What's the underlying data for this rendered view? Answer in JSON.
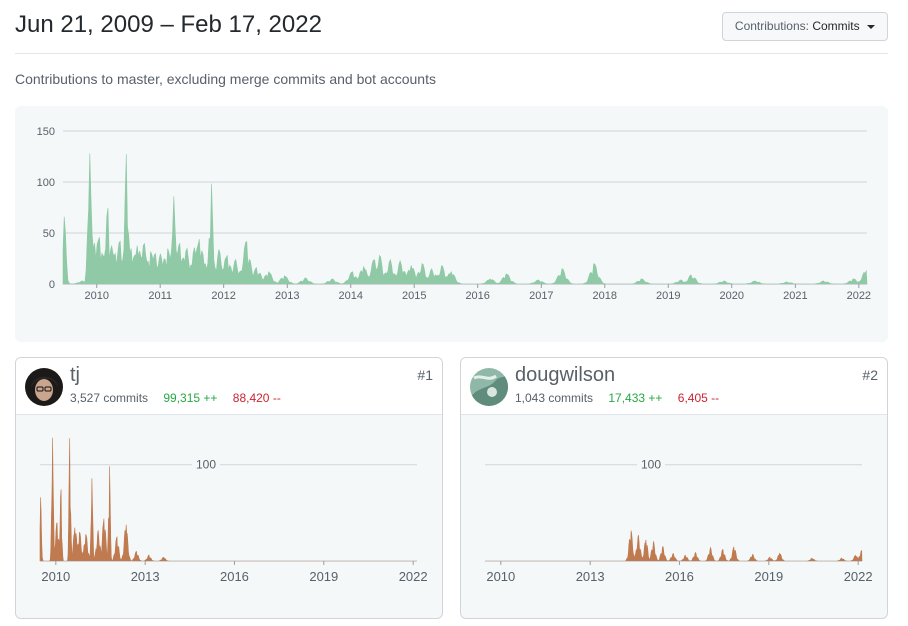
{
  "header": {
    "date_range": "Jun 21, 2009 – Feb 17, 2022",
    "dropdown_label": "Contributions:",
    "dropdown_value": "Commits"
  },
  "subtitle": "Contributions to master, excluding merge commits and bot accounts",
  "colors": {
    "main_fill": "#8fc9a5",
    "contributor_fill": "#bf7a50",
    "grid": "#d1d5da"
  },
  "chart_data": [
    {
      "type": "area",
      "title": "",
      "xlabel": "",
      "ylabel": "",
      "ylim": [
        0,
        150
      ],
      "xlim": [
        "2009-06-21",
        "2022-02-17"
      ],
      "yticks": [
        0,
        50,
        100,
        150
      ],
      "xticks": [
        "2010",
        "2011",
        "2012",
        "2013",
        "2014",
        "2015",
        "2016",
        "2017",
        "2018",
        "2019",
        "2020",
        "2021",
        "2022"
      ],
      "grid": true,
      "series": [
        {
          "peaks": [
            [
              "2009-06-28",
              66
            ],
            [
              "2009-10-10",
              3
            ],
            [
              "2009-11-22",
              128
            ],
            [
              "2009-12-20",
              40
            ],
            [
              "2010-01-15",
              46
            ],
            [
              "2010-02-10",
              28
            ],
            [
              "2010-03-05",
              76
            ],
            [
              "2010-03-25",
              38
            ],
            [
              "2010-04-20",
              30
            ],
            [
              "2010-05-15",
              42
            ],
            [
              "2010-06-22",
              130
            ],
            [
              "2010-07-20",
              35
            ],
            [
              "2010-08-25",
              38
            ],
            [
              "2010-09-30",
              40
            ],
            [
              "2010-11-05",
              32
            ],
            [
              "2010-12-05",
              30
            ],
            [
              "2011-01-05",
              30
            ],
            [
              "2011-02-10",
              35
            ],
            [
              "2011-03-20",
              86
            ],
            [
              "2011-04-25",
              40
            ],
            [
              "2011-06-05",
              35
            ],
            [
              "2011-07-20",
              36
            ],
            [
              "2011-08-15",
              44
            ],
            [
              "2011-09-15",
              20
            ],
            [
              "2011-10-20",
              103
            ],
            [
              "2011-12-05",
              34
            ],
            [
              "2012-01-20",
              28
            ],
            [
              "2012-03-10",
              24
            ],
            [
              "2012-05-10",
              42
            ],
            [
              "2012-07-10",
              16
            ],
            [
              "2012-09-15",
              12
            ],
            [
              "2012-12-15",
              8
            ],
            [
              "2013-04-15",
              6
            ],
            [
              "2013-09-15",
              5
            ],
            [
              "2014-01-10",
              12
            ],
            [
              "2014-03-15",
              17
            ],
            [
              "2014-05-15",
              24
            ],
            [
              "2014-06-15",
              28
            ],
            [
              "2014-08-15",
              24
            ],
            [
              "2014-10-15",
              23
            ],
            [
              "2014-12-15",
              18
            ],
            [
              "2015-02-15",
              20
            ],
            [
              "2015-04-15",
              15
            ],
            [
              "2015-06-10",
              18
            ],
            [
              "2015-08-01",
              12
            ],
            [
              "2016-03-15",
              5
            ],
            [
              "2016-06-15",
              10
            ],
            [
              "2016-12-15",
              4
            ],
            [
              "2017-05-01",
              15
            ],
            [
              "2017-11-01",
              20
            ],
            [
              "2018-08-01",
              5
            ],
            [
              "2019-03-15",
              4
            ],
            [
              "2019-05-15",
              9
            ],
            [
              "2019-11-15",
              3
            ],
            [
              "2020-05-15",
              3
            ],
            [
              "2020-11-15",
              2
            ],
            [
              "2021-06-15",
              3
            ],
            [
              "2021-12-01",
              5
            ],
            [
              "2022-02-10",
              13
            ]
          ]
        }
      ]
    },
    {
      "type": "area",
      "title": "tj",
      "ylim": [
        0,
        135
      ],
      "xlim": [
        "2009-06-21",
        "2022-02-17"
      ],
      "yticks": [
        100
      ],
      "xticks": [
        "2010",
        "2013",
        "2016",
        "2019",
        "2022"
      ],
      "grid": true,
      "series": [
        {
          "name": "tj",
          "peaks": [
            [
              "2009-06-28",
              66
            ],
            [
              "2009-11-22",
              128
            ],
            [
              "2010-01-15",
              40
            ],
            [
              "2010-03-05",
              76
            ],
            [
              "2010-06-22",
              130
            ],
            [
              "2010-08-25",
              35
            ],
            [
              "2010-10-20",
              30
            ],
            [
              "2011-01-05",
              28
            ],
            [
              "2011-03-20",
              86
            ],
            [
              "2011-06-05",
              32
            ],
            [
              "2011-08-15",
              44
            ],
            [
              "2011-10-20",
              103
            ],
            [
              "2012-01-20",
              25
            ],
            [
              "2012-05-10",
              38
            ],
            [
              "2012-09-15",
              10
            ],
            [
              "2013-02-15",
              6
            ],
            [
              "2013-08-15",
              4
            ]
          ]
        }
      ]
    },
    {
      "type": "area",
      "title": "dougwilson",
      "ylim": [
        0,
        135
      ],
      "xlim": [
        "2009-06-21",
        "2022-02-17"
      ],
      "yticks": [
        100
      ],
      "xticks": [
        "2010",
        "2013",
        "2016",
        "2019",
        "2022"
      ],
      "grid": true,
      "series": [
        {
          "name": "dougwilson",
          "peaks": [
            [
              "2014-05-15",
              32
            ],
            [
              "2014-08-15",
              27
            ],
            [
              "2014-11-15",
              22
            ],
            [
              "2015-02-15",
              20
            ],
            [
              "2015-06-10",
              15
            ],
            [
              "2015-10-15",
              8
            ],
            [
              "2016-03-15",
              6
            ],
            [
              "2016-07-15",
              9
            ],
            [
              "2017-01-15",
              14
            ],
            [
              "2017-06-15",
              12
            ],
            [
              "2017-11-01",
              15
            ],
            [
              "2018-06-15",
              7
            ],
            [
              "2019-01-15",
              4
            ],
            [
              "2019-05-15",
              8
            ],
            [
              "2020-06-15",
              3
            ],
            [
              "2021-06-15",
              3
            ],
            [
              "2021-12-01",
              6
            ],
            [
              "2022-02-10",
              11
            ]
          ]
        }
      ]
    }
  ],
  "contributors": [
    {
      "login": "tj",
      "commits": "3,527 commits",
      "additions": "99,315 ++",
      "deletions": "88,420 --",
      "rank": "#1"
    },
    {
      "login": "dougwilson",
      "commits": "1,043 commits",
      "additions": "17,433 ++",
      "deletions": "6,405 --",
      "rank": "#2"
    }
  ]
}
